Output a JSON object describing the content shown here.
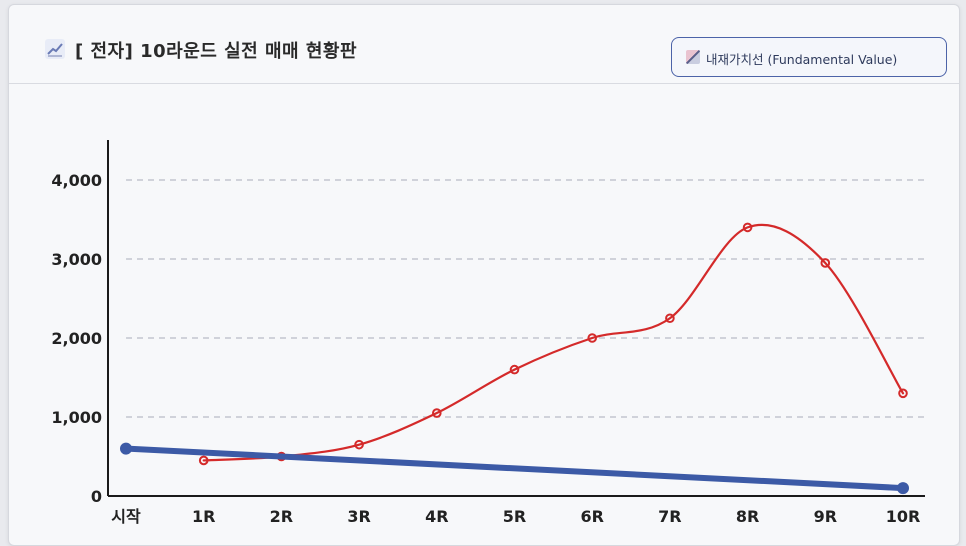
{
  "header": {
    "title": "[ 전자] 10라운드 실전 매매 현황판",
    "legend_button_label": "내재가치선 (Fundamental Value)"
  },
  "colors": {
    "price_line": "#d42a2a",
    "fundamental_line": "#3c5aa6",
    "grid": "#b8bcc6",
    "axis": "#1a1a1a"
  },
  "chart_data": {
    "type": "line",
    "title": "[ 전자] 10라운드 실전 매매 현황판",
    "categories": [
      "시작",
      "1R",
      "2R",
      "3R",
      "4R",
      "5R",
      "6R",
      "7R",
      "8R",
      "9R",
      "10R"
    ],
    "ylim": [
      0,
      4500
    ],
    "yticks": [
      0,
      1000,
      2000,
      3000,
      4000
    ],
    "ytick_labels": [
      "0",
      "1,000",
      "2,000",
      "3,000",
      "4,000"
    ],
    "grid": "horizontal dashed",
    "legend": "top-right",
    "series": [
      {
        "name": "",
        "style": "red hand-drawn line with point markers",
        "x": [
          "1R",
          "2R",
          "3R",
          "4R",
          "5R",
          "6R",
          "7R",
          "8R",
          "9R",
          "10R"
        ],
        "values": [
          450,
          500,
          650,
          1050,
          1600,
          2000,
          2250,
          3400,
          2950,
          1300
        ]
      },
      {
        "name": "내재가치선 (Fundamental Value)",
        "style": "thick blue straight line with endpoint dots",
        "x": [
          "시작",
          "10R"
        ],
        "values": [
          600,
          100
        ]
      }
    ]
  }
}
